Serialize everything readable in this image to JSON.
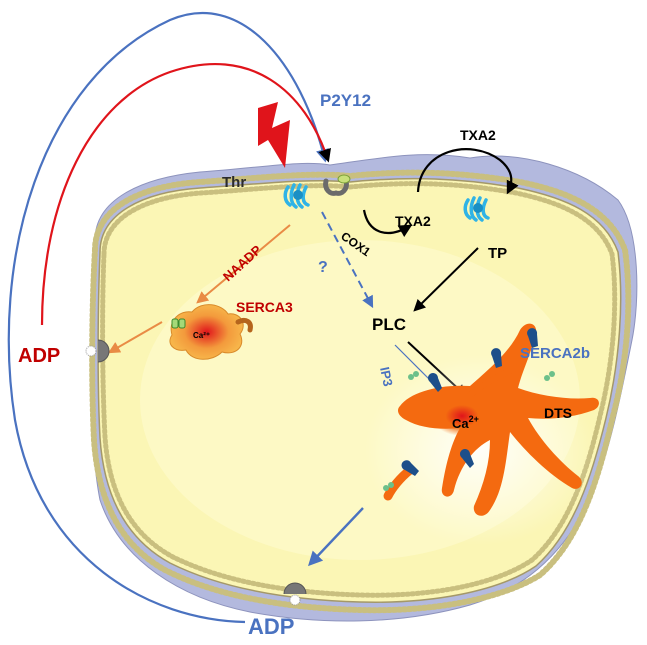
{
  "labels": {
    "p2y12": "P2Y12",
    "txa2_top": "TXA2",
    "thr": "Thr",
    "txa2_inner": "TXA2",
    "cox1": "COX1",
    "tp": "TP",
    "naadp": "NAADP",
    "question": "?",
    "serca3": "SERCA3",
    "ca_small": "Ca²⁺",
    "plc": "PLC",
    "serca2b": "SERCA2b",
    "ip3": "IP3",
    "ca_large": "Ca",
    "ca_large_sup": "2+",
    "dts": "DTS",
    "adp_left": "ADP",
    "adp_bottom": "ADP"
  },
  "colors": {
    "blue": "#4a72c0",
    "red": "#e0141b",
    "dark_red": "#c00000",
    "orange_arrow": "#e98b45",
    "cell_fill": "#fbf6b5",
    "cortex_fill": "#b3b9de",
    "dts_orange": "#f46a10",
    "membrane_bead": "#c9bf7f",
    "receptor_cyan": "#2fb3e6",
    "pump_blue": "#1d4f8a"
  }
}
